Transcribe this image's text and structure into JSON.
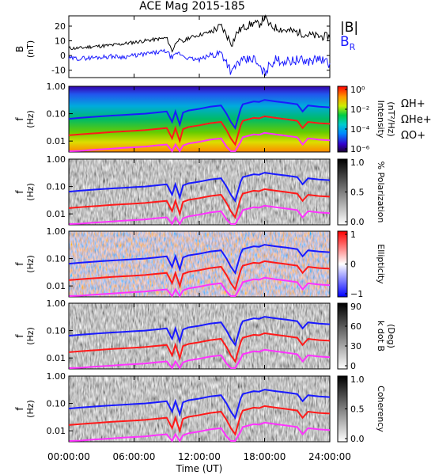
{
  "title": "ACE Mag 2015-185",
  "colors": {
    "total": "#000000",
    "br": "#1a1aff",
    "h": "#1a1aff",
    "he": "#ff1a1a",
    "o": "#ff33ff"
  },
  "chart_data": {
    "type": "line",
    "x_axis": {
      "label": "Time (UT)",
      "ticks": [
        "00:00:00",
        "06:00:00",
        "12:00:00",
        "18:00:00",
        "24:00:00"
      ],
      "range_hours": [
        0,
        24
      ]
    },
    "top_panel": {
      "ylabel": "B",
      "yunit": "(nT)",
      "ylim": [
        -15,
        27
      ],
      "yticks": [
        "20",
        "10",
        "0",
        "-10"
      ],
      "legend": [
        "|B|",
        "B"
      ],
      "legend_sub": "R",
      "series": [
        {
          "name": "|B|",
          "x": [
            0,
            1,
            2,
            3,
            4,
            5,
            6,
            7,
            8,
            9,
            9.5,
            10,
            10.5,
            11,
            12,
            13,
            14,
            14.5,
            15,
            15.5,
            16,
            17,
            17.5,
            18,
            18.5,
            19,
            20,
            21,
            22,
            23,
            24
          ],
          "y": [
            5,
            5,
            6,
            6.5,
            7,
            8,
            9,
            10,
            11,
            12,
            3,
            11,
            9,
            12,
            14,
            16,
            20,
            14,
            8,
            16,
            19,
            22,
            21,
            26,
            20,
            19,
            17,
            16,
            14,
            13,
            13
          ]
        },
        {
          "name": "B",
          "x": [
            0,
            1,
            2,
            3,
            4,
            5,
            6,
            7,
            8,
            9,
            9.5,
            10,
            10.5,
            11,
            12,
            13,
            14,
            14.5,
            15,
            15.5,
            16,
            17,
            17.5,
            18,
            18.5,
            19,
            20,
            21,
            22,
            23,
            24
          ],
          "y": [
            -2,
            -2,
            -1.5,
            -1,
            -0.5,
            -1,
            0,
            1,
            2,
            3,
            -2,
            2,
            0,
            -2,
            -3,
            0,
            2,
            -4,
            -12,
            -5,
            -4,
            -2,
            -8,
            -12,
            -6,
            -3,
            -4,
            -3,
            -4,
            -2,
            -6
          ]
        }
      ]
    },
    "freq_axis": {
      "label": "f",
      "unit": "(Hz)",
      "ticks": [
        "1.00",
        "0.10",
        "0.01"
      ]
    },
    "cyclotron_lines": {
      "x": [
        0,
        1,
        2,
        3,
        4,
        5,
        6,
        7,
        8,
        9,
        9.5,
        9.8,
        10.2,
        10.5,
        11,
        12,
        13,
        14,
        14.5,
        14.9,
        15.3,
        15.8,
        16,
        17,
        17.5,
        18,
        18.5,
        19,
        20,
        21,
        21.5,
        22,
        23,
        24
      ],
      "H+": [
        0.065,
        0.07,
        0.075,
        0.08,
        0.085,
        0.09,
        0.095,
        0.1,
        0.11,
        0.12,
        0.05,
        0.12,
        0.04,
        0.11,
        0.13,
        0.15,
        0.18,
        0.2,
        0.1,
        0.05,
        0.03,
        0.15,
        0.22,
        0.28,
        0.27,
        0.32,
        0.3,
        0.28,
        0.25,
        0.22,
        0.12,
        0.2,
        0.18,
        0.17
      ]
    },
    "panels": [
      {
        "ylabel_unit": [
          "Intensity",
          "(nT²/Hz)"
        ],
        "colorbar_ticks": [
          "10⁰",
          "10⁻²",
          "10⁻⁴",
          "10⁻⁶"
        ],
        "colorbar": "rainbow",
        "legend": [
          "ΩH+",
          "ΩHe+",
          "ΩO+"
        ]
      },
      {
        "ylabel_unit": [
          "% Polarization"
        ],
        "colorbar_ticks": [
          "1.0",
          "0.5",
          "0.0"
        ],
        "colorbar": "gray"
      },
      {
        "ylabel_unit": [
          "Ellipticity"
        ],
        "colorbar_ticks": [
          "1",
          "0",
          "−1"
        ],
        "colorbar": "bwr"
      },
      {
        "ylabel_unit": [
          "k dot B",
          "(Deg)"
        ],
        "colorbar_ticks": [
          "90",
          "60",
          "30",
          "0"
        ],
        "colorbar": "gray"
      },
      {
        "ylabel_unit": [
          "Coherency"
        ],
        "colorbar_ticks": [
          "1.0",
          "0.5",
          "0.0"
        ],
        "colorbar": "gray"
      }
    ]
  }
}
